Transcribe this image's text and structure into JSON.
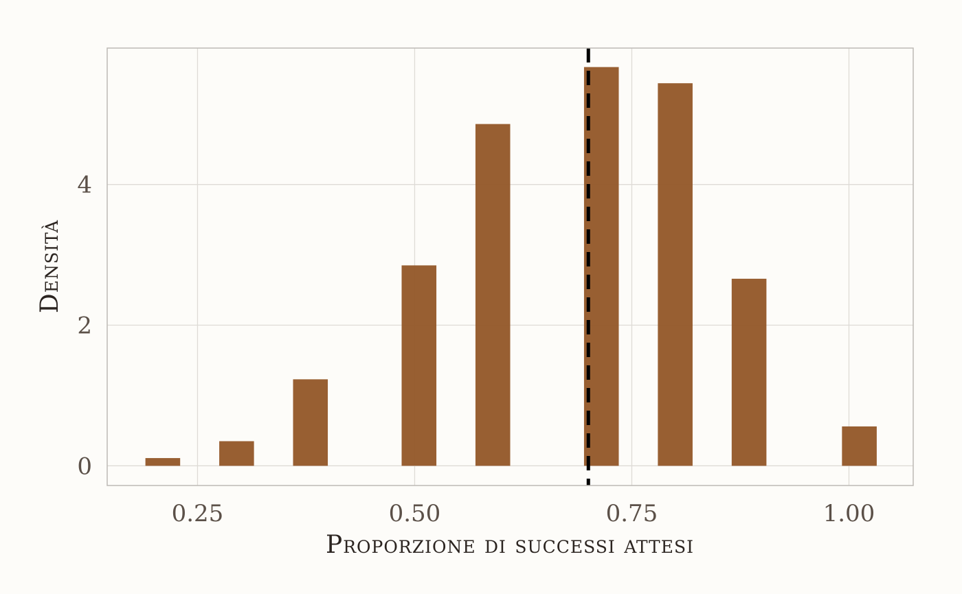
{
  "chart_data": {
    "type": "bar",
    "xlabel": "Proporzione di successi attesi",
    "ylabel": "Densità",
    "xlim": [
      0.146,
      1.074
    ],
    "ylim": [
      -0.28,
      5.94
    ],
    "x_ticks": [
      0.25,
      0.5,
      0.75,
      1.0
    ],
    "x_tick_labels": [
      "0.25",
      "0.50",
      "0.75",
      "1.00"
    ],
    "y_ticks": [
      0,
      2,
      4
    ],
    "y_tick_labels": [
      "0",
      "2",
      "4"
    ],
    "bar_width": 0.04,
    "bars": [
      {
        "x": 0.21,
        "value": 0.11
      },
      {
        "x": 0.295,
        "value": 0.35
      },
      {
        "x": 0.38,
        "value": 1.23
      },
      {
        "x": 0.505,
        "value": 2.85
      },
      {
        "x": 0.59,
        "value": 4.86
      },
      {
        "x": 0.715,
        "value": 5.67
      },
      {
        "x": 0.8,
        "value": 5.44
      },
      {
        "x": 0.885,
        "value": 2.66
      },
      {
        "x": 1.012,
        "value": 0.56
      }
    ],
    "reference_line": {
      "x": 0.7,
      "style": "dashed",
      "color": "#000000"
    },
    "bar_color": "#955a2b",
    "grid": true
  }
}
